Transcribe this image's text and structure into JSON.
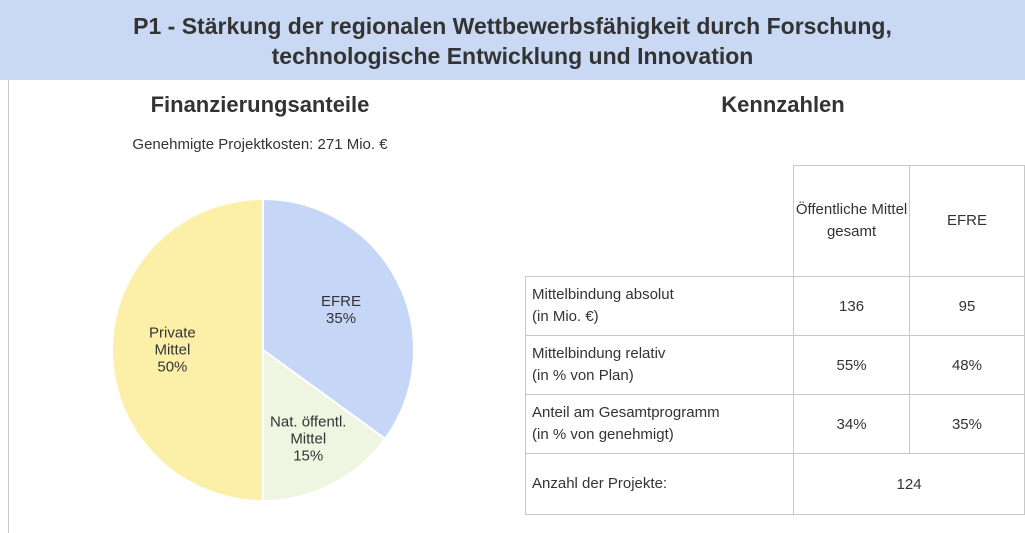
{
  "header": {
    "title_lines": [
      "P1 - Stärkung der regionalen Wettbewerbsfähigkeit durch Forschung,",
      "technologische Entwicklung und Innovation"
    ]
  },
  "chart_data": {
    "type": "pie",
    "title": "Finanzierungsanteile",
    "subtitle": "Genehmigte Projektkosten: 271 Mio. €",
    "categories": [
      "EFRE",
      "Nat. öffentl. Mittel",
      "Private Mittel"
    ],
    "values": [
      35,
      15,
      50
    ],
    "value_labels": [
      "35%",
      "15%",
      "50%"
    ],
    "colors": [
      "#c6d6f7",
      "#eef5e1",
      "#fcf0a8"
    ]
  },
  "table": {
    "title": "Kennzahlen",
    "columns": [
      "Öffentliche Mittel gesamt",
      "EFRE"
    ],
    "rows": [
      {
        "label": [
          "Mittelbindung absolut",
          "(in Mio. €)"
        ],
        "cells": [
          136,
          95
        ]
      },
      {
        "label": [
          "Mittelbindung relativ",
          "(in % von Plan)"
        ],
        "cells": [
          "55%",
          "48%"
        ]
      },
      {
        "label": [
          "Anteil am Gesamtprogramm",
          "(in % von genehmigt)"
        ],
        "cells": [
          "34%",
          "35%"
        ]
      }
    ],
    "total": {
      "label": "Anzahl der Projekte:",
      "value": 124
    }
  }
}
